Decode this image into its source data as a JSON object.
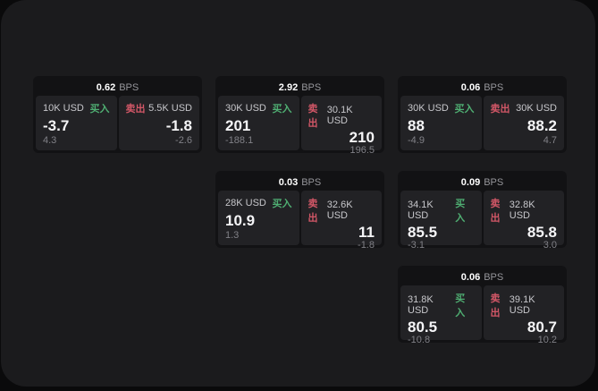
{
  "colors": {
    "page_bg": "#0a0a0b",
    "panel_bg": "#1b1b1d",
    "card_bg": "#121214",
    "pane_bg": "#222225",
    "buy_green": "#4fae72",
    "sell_red": "#d25767"
  },
  "labels": {
    "bps_unit": "BPS",
    "buy": "买入",
    "sell": "卖出"
  },
  "cards": [
    {
      "bps": "0.62",
      "buy": {
        "size": "10K USD",
        "value": "-3.7",
        "sub": "4.3"
      },
      "sell": {
        "size": "5.5K USD",
        "value": "-1.8",
        "sub": "-2.6"
      }
    },
    {
      "bps": "2.92",
      "buy": {
        "size": "30K USD",
        "value": "201",
        "sub": "-188.1"
      },
      "sell": {
        "size": "30.1K USD",
        "value": "210",
        "sub": "196.5"
      }
    },
    {
      "bps": "0.06",
      "buy": {
        "size": "30K USD",
        "value": "88",
        "sub": "-4.9"
      },
      "sell": {
        "size": "30K USD",
        "value": "88.2",
        "sub": "4.7"
      }
    },
    {
      "bps": "0.03",
      "buy": {
        "size": "28K USD",
        "value": "10.9",
        "sub": "1.3"
      },
      "sell": {
        "size": "32.6K USD",
        "value": "11",
        "sub": "-1.8"
      }
    },
    {
      "bps": "0.09",
      "buy": {
        "size": "34.1K USD",
        "value": "85.5",
        "sub": "-3.1"
      },
      "sell": {
        "size": "32.8K USD",
        "value": "85.8",
        "sub": "3.0"
      }
    },
    {
      "bps": "0.06",
      "buy": {
        "size": "31.8K USD",
        "value": "80.5",
        "sub": "-10.8"
      },
      "sell": {
        "size": "39.1K USD",
        "value": "80.7",
        "sub": "10.2"
      }
    }
  ]
}
